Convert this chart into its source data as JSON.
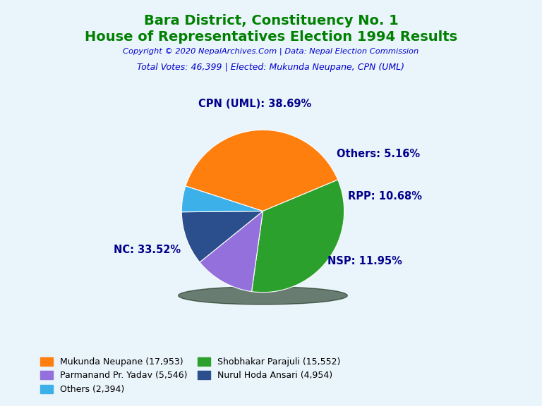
{
  "title_line1": "Bara District, Constituency No. 1",
  "title_line2": "House of Representatives Election 1994 Results",
  "title_color": "#008000",
  "copyright_text": "Copyright © 2020 NepalArchives.Com | Data: Nepal Election Commission",
  "copyright_color": "#0000cd",
  "total_votes_text": "Total Votes: 46,399 | Elected: Mukunda Neupane, CPN (UML)",
  "total_votes_color": "#0000cd",
  "slices": [
    {
      "label": "CPN (UML)",
      "pct": 38.69,
      "value": 17953,
      "color": "#ff7f0e"
    },
    {
      "label": "NC",
      "pct": 33.52,
      "value": 15552,
      "color": "#2ca02c"
    },
    {
      "label": "NSP",
      "pct": 11.95,
      "value": 5546,
      "color": "#9370db"
    },
    {
      "label": "RPP",
      "pct": 10.68,
      "value": 4954,
      "color": "#2b4f8c"
    },
    {
      "label": "Others",
      "pct": 5.16,
      "value": 2394,
      "color": "#3cb0e8"
    }
  ],
  "label_color": "#00008b",
  "label_fontsize": 10.5,
  "bg_color": "#eaf4fb",
  "legend_labels": [
    "Mukunda Neupane (17,953)",
    "Parmanand Pr. Yadav (5,546)",
    "Others (2,394)",
    "Shobhakar Parajuli (15,552)",
    "Nurul Hoda Ansari (4,954)"
  ],
  "legend_colors": [
    "#ff7f0e",
    "#9370db",
    "#3cb0e8",
    "#2ca02c",
    "#2b4f8c"
  ],
  "startangle": 162,
  "label_positions": [
    [
      -0.1,
      1.32,
      "center"
    ],
    [
      -1.42,
      -0.48,
      "center"
    ],
    [
      1.25,
      -0.62,
      "center"
    ],
    [
      1.5,
      0.18,
      "center"
    ],
    [
      1.42,
      0.7,
      "center"
    ]
  ]
}
